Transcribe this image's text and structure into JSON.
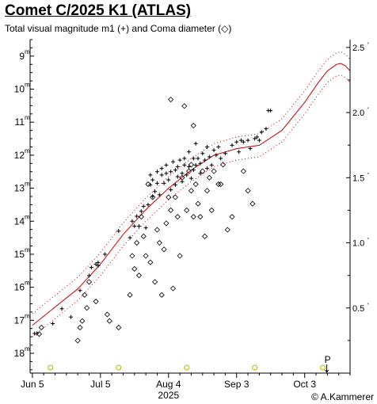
{
  "title": "Comet C/2025 K1 (ATLAS)",
  "subtitle": "Total visual magnitude m1 (+) and Coma diameter (◇)",
  "credit": "© A.Kammerer",
  "colors": {
    "model": "#cc0000",
    "perihelion_marker": "#b8b800",
    "axis": "#000000"
  },
  "chart_data": {
    "type": "scatter",
    "title": "Comet C/2025 K1 (ATLAS)",
    "xlabel": "2025",
    "x_ticks": [
      "Jun 5",
      "Jul 5",
      "Aug 4",
      "Sep 3",
      "Oct 3"
    ],
    "x_tick_days": [
      0,
      30,
      60,
      90,
      120
    ],
    "xlim": [
      -1,
      140
    ],
    "y_left": {
      "label": "Total visual magnitude m1",
      "ticks": [
        "9",
        "10",
        "11",
        "12",
        "13",
        "14",
        "15",
        "16",
        "17",
        "18"
      ],
      "tick_values": [
        9,
        10,
        11,
        12,
        13,
        14,
        15,
        16,
        17,
        18
      ],
      "unit_superscript": "m",
      "ylim": [
        8.5,
        18.6
      ],
      "inverted": true
    },
    "y_right": {
      "label": "Coma diameter",
      "ticks": [
        "0.5",
        "1.0",
        "1.5",
        "2.0",
        "2.5"
      ],
      "tick_values": [
        0.5,
        1.0,
        1.5,
        2.0,
        2.5
      ],
      "unit_superscript": "'",
      "ylim": [
        0,
        2.56
      ]
    },
    "perihelion_label": "P",
    "markers_days": [
      8,
      38,
      68,
      98,
      128
    ],
    "model_curve": {
      "days": [
        0,
        10,
        20,
        30,
        40,
        50,
        60,
        70,
        80,
        90,
        100,
        110,
        120,
        126,
        130,
        134,
        136,
        138,
        140
      ],
      "mag": [
        17.15,
        16.6,
        16.05,
        15.3,
        14.4,
        13.65,
        13.0,
        12.45,
        12.0,
        11.8,
        11.7,
        11.25,
        10.4,
        9.8,
        9.45,
        9.25,
        9.22,
        9.3,
        9.45
      ],
      "band": 0.35
    },
    "series": [
      {
        "name": "Total visual magnitude m1 (+)",
        "marker": "+",
        "days": [
          1,
          2,
          9,
          13,
          17,
          21,
          25,
          26,
          28,
          29,
          29,
          32,
          38,
          43,
          44,
          45,
          46,
          47,
          48,
          49,
          50,
          51,
          52,
          52,
          53,
          53,
          54,
          55,
          55,
          56,
          57,
          57,
          58,
          59,
          59,
          60,
          61,
          61,
          62,
          63,
          63,
          64,
          64,
          65,
          66,
          66,
          67,
          67,
          68,
          69,
          69,
          70,
          71,
          71,
          72,
          72,
          73,
          74,
          74,
          75,
          76,
          77,
          77,
          78,
          79,
          80,
          81,
          82,
          83,
          85,
          88,
          90,
          91,
          92,
          93,
          95,
          96,
          98,
          99,
          100,
          101,
          103,
          104,
          105
        ],
        "mag": [
          17.4,
          17.4,
          17.1,
          16.65,
          16.9,
          16.1,
          15.65,
          15.4,
          15.3,
          15.35,
          15.25,
          15.0,
          14.3,
          14.5,
          14.0,
          14.15,
          13.85,
          14.15,
          13.7,
          13.55,
          14.2,
          13.5,
          12.9,
          12.6,
          13.25,
          12.75,
          13.1,
          12.5,
          12.85,
          13.2,
          12.6,
          12.4,
          12.85,
          12.3,
          12.55,
          12.75,
          12.5,
          13.05,
          12.2,
          12.45,
          12.9,
          12.35,
          12.65,
          12.15,
          12.55,
          12.8,
          12.3,
          12.1,
          12.6,
          12.35,
          11.9,
          12.7,
          12.1,
          12.45,
          11.65,
          12.3,
          12.1,
          12.55,
          12.25,
          11.95,
          12.15,
          12.4,
          11.75,
          12.05,
          12.3,
          11.85,
          12.0,
          11.75,
          12.1,
          11.95,
          11.7,
          11.6,
          11.9,
          11.55,
          11.6,
          11.55,
          11.8,
          11.5,
          11.45,
          11.55,
          11.3,
          11.2,
          10.65,
          10.65
        ]
      },
      {
        "name": "Coma diameter (◇)",
        "marker": "diamond",
        "days": [
          3,
          4,
          20,
          21,
          22,
          23,
          24,
          25,
          28,
          33,
          34,
          38,
          43,
          44,
          45,
          46,
          47,
          48,
          49,
          50,
          51,
          52,
          53,
          54,
          55,
          56,
          57,
          58,
          59,
          60,
          61,
          61,
          62,
          63,
          64,
          65,
          66,
          67,
          68,
          69,
          70,
          70,
          71,
          71,
          72,
          73,
          74,
          75,
          76,
          77,
          78,
          79,
          80,
          82,
          83,
          84,
          86,
          88,
          93,
          95,
          97
        ],
        "arcmin": [
          0.3,
          0.35,
          0.25,
          0.35,
          0.4,
          0.6,
          0.5,
          0.7,
          0.55,
          0.45,
          0.4,
          0.35,
          0.6,
          0.9,
          0.8,
          1.0,
          0.75,
          1.2,
          1.05,
          0.9,
          1.45,
          0.85,
          1.35,
          0.7,
          1.1,
          1.0,
          0.6,
          0.95,
          1.15,
          1.35,
          1.25,
          2.1,
          0.65,
          1.35,
          1.2,
          0.9,
          1.5,
          2.05,
          1.25,
          1.55,
          1.4,
          1.6,
          1.2,
          1.9,
          1.45,
          1.3,
          1.2,
          1.55,
          1.05,
          1.4,
          1.5,
          1.25,
          1.55,
          1.45,
          1.45,
          1.6,
          1.1,
          1.2,
          1.55,
          1.4,
          1.3
        ]
      }
    ],
    "grid": false,
    "legend": "none"
  }
}
